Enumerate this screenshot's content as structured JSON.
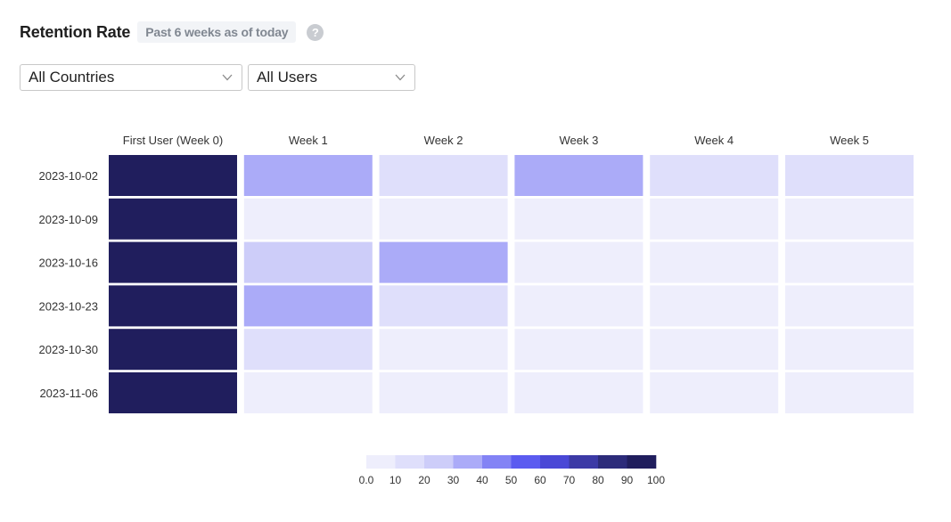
{
  "header": {
    "title": "Retention Rate",
    "subtitle": "Past 6 weeks as of today",
    "help_icon": "question-circle-icon"
  },
  "filters": {
    "country": {
      "value": "All Countries",
      "icon": "chevron-down-icon"
    },
    "users": {
      "value": "All Users",
      "icon": "chevron-down-icon"
    }
  },
  "chart_data": {
    "type": "heatmap",
    "columns": [
      "First User (Week 0)",
      "Week 1",
      "Week 2",
      "Week 3",
      "Week 4",
      "Week 5"
    ],
    "rows": [
      "2023-10-02",
      "2023-10-09",
      "2023-10-16",
      "2023-10-23",
      "2023-10-30",
      "2023-11-06"
    ],
    "values": [
      [
        100,
        30,
        10,
        30,
        10,
        10
      ],
      [
        100,
        5,
        5,
        5,
        5,
        5
      ],
      [
        100,
        20,
        30,
        5,
        5,
        5
      ],
      [
        100,
        30,
        10,
        5,
        5,
        5
      ],
      [
        100,
        10,
        5,
        5,
        5,
        5
      ],
      [
        100,
        5,
        5,
        5,
        5,
        5
      ]
    ],
    "color_scale": {
      "ticks": [
        "0.0",
        "10",
        "20",
        "30",
        "40",
        "50",
        "60",
        "70",
        "80",
        "90",
        "100"
      ],
      "colors": [
        "#eeeefc",
        "#dfdffb",
        "#cdcdf9",
        "#ababf8",
        "#8383f5",
        "#5b5bf0",
        "#4a48d6",
        "#3c3aa6",
        "#2c2b7a",
        "#201e5d"
      ]
    }
  }
}
